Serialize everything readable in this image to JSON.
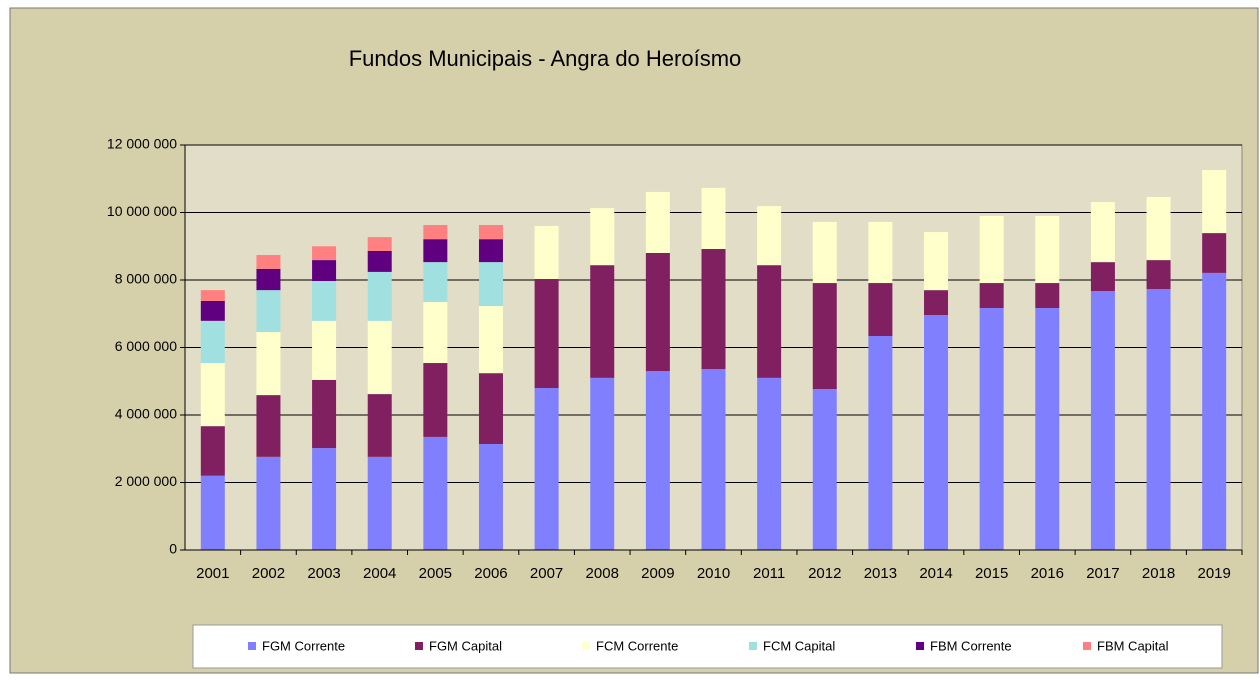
{
  "chart_data": {
    "type": "stacked_bar",
    "title": "Fundos Municipais - Angra do Heroísmo",
    "categories": [
      "2001",
      "2002",
      "2003",
      "2004",
      "2005",
      "2006",
      "2007",
      "2008",
      "2009",
      "2010",
      "2011",
      "2012",
      "2013",
      "2014",
      "2015",
      "2016",
      "2017",
      "2018",
      "2019"
    ],
    "series": [
      {
        "name": "FGM Corrente",
        "color": "#8080ff",
        "values": [
          2200000,
          2760000,
          3020000,
          2760000,
          3350000,
          3140000,
          4800000,
          5100000,
          5300000,
          5360000,
          5100000,
          4770000,
          6340000,
          6960000,
          7170000,
          7170000,
          7670000,
          7730000,
          8210000
        ]
      },
      {
        "name": "FGM Capital",
        "color": "#802060",
        "values": [
          1470000,
          1830000,
          2020000,
          1860000,
          2190000,
          2100000,
          3230000,
          3340000,
          3500000,
          3560000,
          3340000,
          3140000,
          1570000,
          740000,
          740000,
          740000,
          860000,
          860000,
          1180000
        ]
      },
      {
        "name": "FCM Corrente",
        "color": "#ffffcc",
        "values": [
          1870000,
          1870000,
          1750000,
          2170000,
          1810000,
          1990000,
          1570000,
          1690000,
          1810000,
          1810000,
          1750000,
          1810000,
          1810000,
          1720000,
          1990000,
          1990000,
          1780000,
          1870000,
          1870000
        ]
      },
      {
        "name": "FCM Capital",
        "color": "#a0e0e0",
        "values": [
          1250000,
          1240000,
          1180000,
          1450000,
          1180000,
          1300000,
          null,
          null,
          null,
          null,
          null,
          null,
          null,
          null,
          null,
          null,
          null,
          null,
          null
        ]
      },
      {
        "name": "FBM Corrente",
        "color": "#600080",
        "values": [
          590000,
          630000,
          620000,
          620000,
          680000,
          680000,
          null,
          null,
          null,
          null,
          null,
          null,
          null,
          null,
          null,
          null,
          null,
          null,
          null
        ]
      },
      {
        "name": "FBM Capital",
        "color": "#ff8080",
        "values": [
          320000,
          410000,
          410000,
          410000,
          420000,
          420000,
          null,
          null,
          null,
          null,
          null,
          null,
          null,
          null,
          null,
          null,
          null,
          null,
          null
        ]
      }
    ],
    "ylim": [
      0,
      12000000
    ],
    "yticks": [
      0,
      {
        "value": 2000000,
        "label": "2 000 000"
      },
      {
        "value": 4000000,
        "label": "4 000 000"
      },
      {
        "value": 6000000,
        "label": "6 000 000"
      },
      {
        "value": 8000000,
        "label": "8 000 000"
      },
      {
        "value": 10000000,
        "label": "10 000 000"
      },
      {
        "value": 12000000,
        "label": "12 000 000"
      }
    ],
    "grid": true,
    "legend": "bottom"
  }
}
